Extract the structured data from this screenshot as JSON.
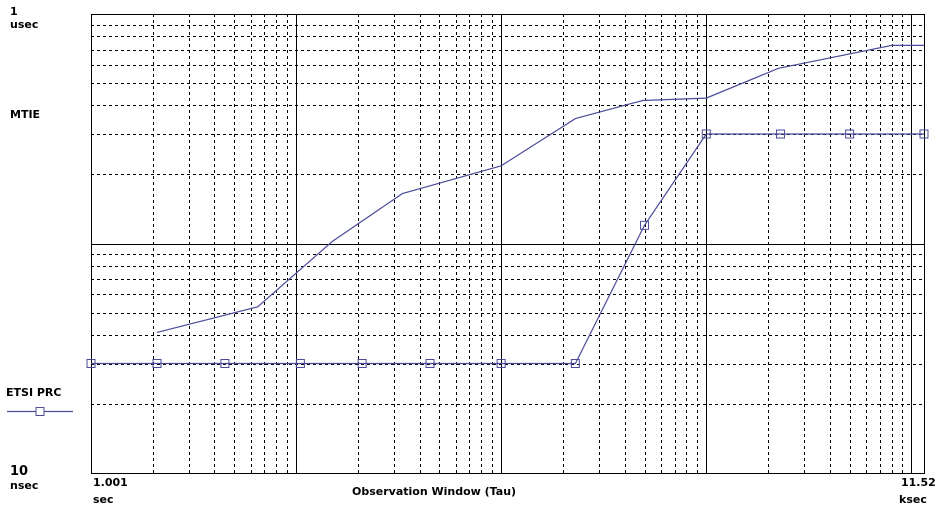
{
  "chart_data": {
    "type": "line",
    "title": "",
    "ylabel": "MTIE",
    "xlabel": "Observation Window (Tau)",
    "x_scale": "log",
    "y_scale": "log",
    "xlim_seconds": [
      1.001,
      11520
    ],
    "ylim_seconds": [
      1e-08,
      1e-06
    ],
    "grid": true,
    "legend_position": "left",
    "axis_labels": {
      "y_top_value": "1",
      "y_top_unit": "usec",
      "y_bottom_value": "10",
      "y_bottom_unit": "nsec",
      "x_left_value": "1.001",
      "x_left_unit": "sec",
      "x_right_value": "11.52",
      "x_right_unit": "ksec"
    },
    "series": [
      {
        "name": "",
        "color": "#4b4b9a",
        "marker": "none",
        "x": [
          2.1,
          6.5,
          15,
          33,
          100,
          230,
          490,
          1000,
          2250,
          8000,
          11520
        ],
        "y": [
          4.1e-08,
          5.3e-08,
          1.02e-07,
          1.65e-07,
          2.18e-07,
          3.5e-07,
          4.2e-07,
          4.3e-07,
          5.8e-07,
          7.3e-07,
          7.3e-07
        ]
      },
      {
        "name": "ETSI PRC",
        "color": "#4b4b9a",
        "marker": "square",
        "x": [
          1.001,
          2.1,
          4.5,
          10.5,
          21,
          45,
          100,
          230,
          500,
          1000,
          2300,
          5000,
          11520
        ],
        "y": [
          3e-08,
          3e-08,
          3e-08,
          3e-08,
          3e-08,
          3e-08,
          3e-08,
          3e-08,
          1.2e-07,
          3e-07,
          3e-07,
          3e-07,
          3e-07
        ]
      }
    ]
  },
  "colors": {
    "background": "#ffffff",
    "grid": "#000000",
    "series": "#4b4b9a"
  }
}
